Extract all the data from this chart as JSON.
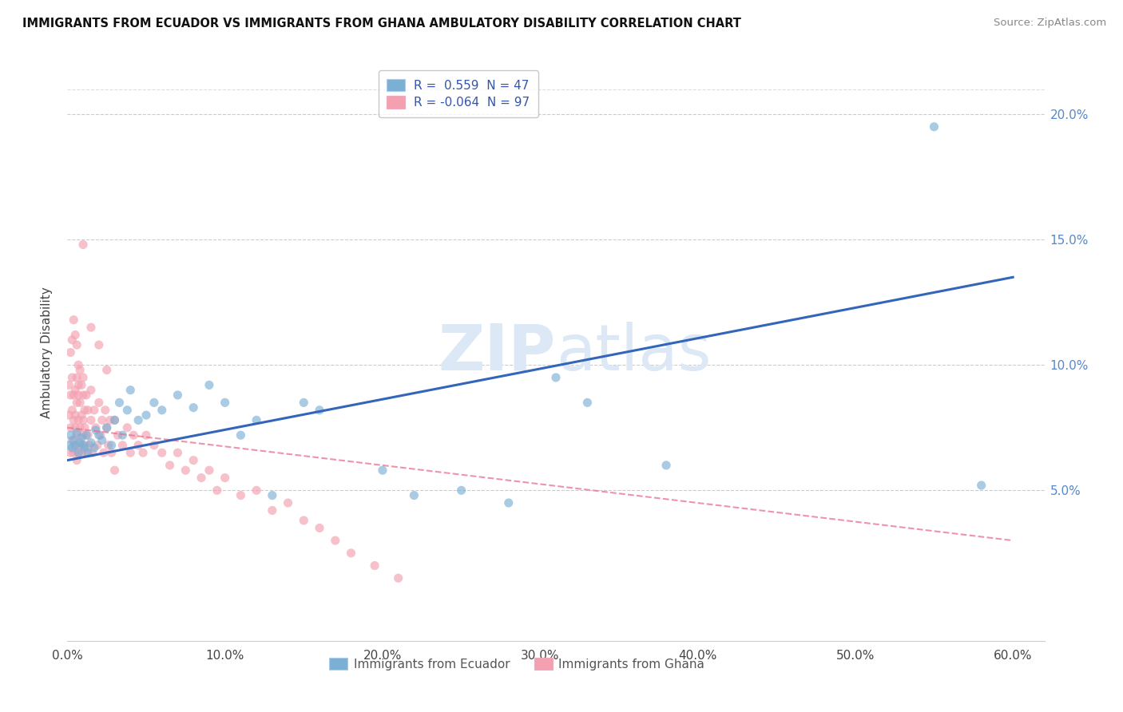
{
  "title": "IMMIGRANTS FROM ECUADOR VS IMMIGRANTS FROM GHANA AMBULATORY DISABILITY CORRELATION CHART",
  "source": "Source: ZipAtlas.com",
  "ylabel": "Ambulatory Disability",
  "ecuador_R": 0.559,
  "ecuador_N": 47,
  "ghana_R": -0.064,
  "ghana_N": 97,
  "ecuador_color": "#7BAFD4",
  "ghana_color": "#F4A0B0",
  "ecuador_line_color": "#3366BB",
  "ghana_line_color": "#E87090",
  "xlim": [
    0.0,
    0.62
  ],
  "ylim": [
    -0.01,
    0.22
  ],
  "xticks": [
    0.0,
    0.1,
    0.2,
    0.3,
    0.4,
    0.5,
    0.6
  ],
  "yticks_right": [
    0.05,
    0.1,
    0.15,
    0.2
  ],
  "ecuador_line_x0": 0.0,
  "ecuador_line_y0": 0.062,
  "ecuador_line_x1": 0.6,
  "ecuador_line_y1": 0.135,
  "ghana_line_x0": 0.0,
  "ghana_line_y0": 0.075,
  "ghana_line_x1": 0.6,
  "ghana_line_y1": 0.03,
  "ecuador_x": [
    0.001,
    0.002,
    0.003,
    0.004,
    0.005,
    0.006,
    0.007,
    0.008,
    0.009,
    0.01,
    0.011,
    0.012,
    0.013,
    0.015,
    0.017,
    0.018,
    0.02,
    0.022,
    0.025,
    0.028,
    0.03,
    0.033,
    0.035,
    0.038,
    0.04,
    0.045,
    0.05,
    0.055,
    0.06,
    0.07,
    0.08,
    0.09,
    0.1,
    0.11,
    0.12,
    0.13,
    0.15,
    0.16,
    0.2,
    0.22,
    0.25,
    0.28,
    0.31,
    0.33,
    0.38,
    0.55,
    0.58
  ],
  "ecuador_y": [
    0.068,
    0.072,
    0.067,
    0.07,
    0.068,
    0.073,
    0.065,
    0.069,
    0.071,
    0.068,
    0.067,
    0.072,
    0.065,
    0.069,
    0.067,
    0.074,
    0.072,
    0.07,
    0.075,
    0.068,
    0.078,
    0.085,
    0.072,
    0.082,
    0.09,
    0.078,
    0.08,
    0.085,
    0.082,
    0.088,
    0.083,
    0.092,
    0.085,
    0.072,
    0.078,
    0.048,
    0.085,
    0.082,
    0.058,
    0.048,
    0.05,
    0.045,
    0.095,
    0.085,
    0.06,
    0.195,
    0.052
  ],
  "ghana_x": [
    0.001,
    0.001,
    0.002,
    0.002,
    0.002,
    0.003,
    0.003,
    0.003,
    0.004,
    0.004,
    0.004,
    0.005,
    0.005,
    0.005,
    0.005,
    0.006,
    0.006,
    0.006,
    0.006,
    0.007,
    0.007,
    0.007,
    0.007,
    0.008,
    0.008,
    0.008,
    0.009,
    0.009,
    0.009,
    0.01,
    0.01,
    0.01,
    0.01,
    0.011,
    0.011,
    0.011,
    0.012,
    0.012,
    0.013,
    0.013,
    0.014,
    0.015,
    0.015,
    0.016,
    0.017,
    0.018,
    0.019,
    0.02,
    0.021,
    0.022,
    0.023,
    0.024,
    0.025,
    0.026,
    0.027,
    0.028,
    0.03,
    0.032,
    0.035,
    0.038,
    0.04,
    0.042,
    0.045,
    0.048,
    0.05,
    0.055,
    0.06,
    0.065,
    0.07,
    0.075,
    0.08,
    0.085,
    0.09,
    0.095,
    0.1,
    0.11,
    0.12,
    0.13,
    0.14,
    0.15,
    0.16,
    0.17,
    0.18,
    0.195,
    0.21,
    0.002,
    0.003,
    0.004,
    0.005,
    0.006,
    0.007,
    0.008,
    0.015,
    0.02,
    0.025,
    0.03,
    0.01
  ],
  "ghana_y": [
    0.08,
    0.092,
    0.075,
    0.088,
    0.065,
    0.082,
    0.095,
    0.07,
    0.078,
    0.088,
    0.065,
    0.075,
    0.09,
    0.08,
    0.068,
    0.085,
    0.072,
    0.095,
    0.062,
    0.078,
    0.088,
    0.065,
    0.092,
    0.075,
    0.085,
    0.068,
    0.08,
    0.092,
    0.065,
    0.078,
    0.088,
    0.072,
    0.095,
    0.068,
    0.082,
    0.075,
    0.065,
    0.088,
    0.072,
    0.082,
    0.068,
    0.078,
    0.09,
    0.065,
    0.082,
    0.075,
    0.068,
    0.085,
    0.072,
    0.078,
    0.065,
    0.082,
    0.075,
    0.068,
    0.078,
    0.065,
    0.078,
    0.072,
    0.068,
    0.075,
    0.065,
    0.072,
    0.068,
    0.065,
    0.072,
    0.068,
    0.065,
    0.06,
    0.065,
    0.058,
    0.062,
    0.055,
    0.058,
    0.05,
    0.055,
    0.048,
    0.05,
    0.042,
    0.045,
    0.038,
    0.035,
    0.03,
    0.025,
    0.02,
    0.015,
    0.105,
    0.11,
    0.118,
    0.112,
    0.108,
    0.1,
    0.098,
    0.115,
    0.108,
    0.098,
    0.058,
    0.148
  ]
}
